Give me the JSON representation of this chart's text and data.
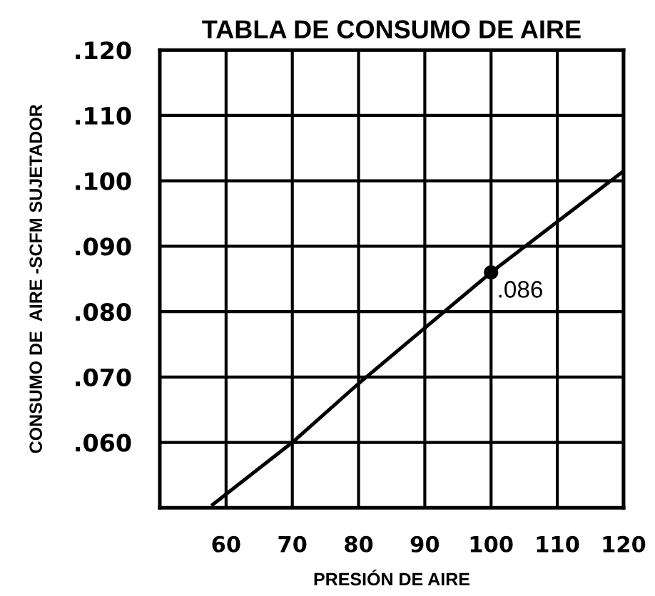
{
  "chart_data": {
    "type": "line",
    "title": "TABLA DE CONSUMO DE AIRE",
    "xlabel": "PRESIÓN DE AIRE",
    "ylabel": "CONSUMO DE  AIRE -SCFM SUJETADOR",
    "xlim": [
      50,
      120
    ],
    "ylim": [
      0.05,
      0.12
    ],
    "xticks": [
      60,
      70,
      80,
      90,
      100,
      110,
      120
    ],
    "yticks": [
      {
        "value": 0.06,
        "label": ".060"
      },
      {
        "value": 0.07,
        "label": ".070"
      },
      {
        "value": 0.08,
        "label": ".080"
      },
      {
        "value": 0.09,
        "label": ".090"
      },
      {
        "value": 0.1,
        "label": ".100"
      },
      {
        "value": 0.11,
        "label": ".110"
      },
      {
        "value": 0.12,
        "label": ".120"
      }
    ],
    "grid": true,
    "legend": false,
    "series": [
      {
        "color": "#000000",
        "x": [
          58,
          70,
          80,
          100,
          120
        ],
        "values": [
          0.0505,
          0.06,
          0.069,
          0.086,
          0.1015
        ],
        "marker": "none",
        "line_style": "solid"
      },
      {
        "type": "scatter",
        "color": "#000000",
        "x": [
          100
        ],
        "values": [
          0.086
        ],
        "marker": "circle"
      }
    ],
    "annotations": [
      {
        "text": ".086",
        "x": 100,
        "y": 0.086
      }
    ]
  }
}
